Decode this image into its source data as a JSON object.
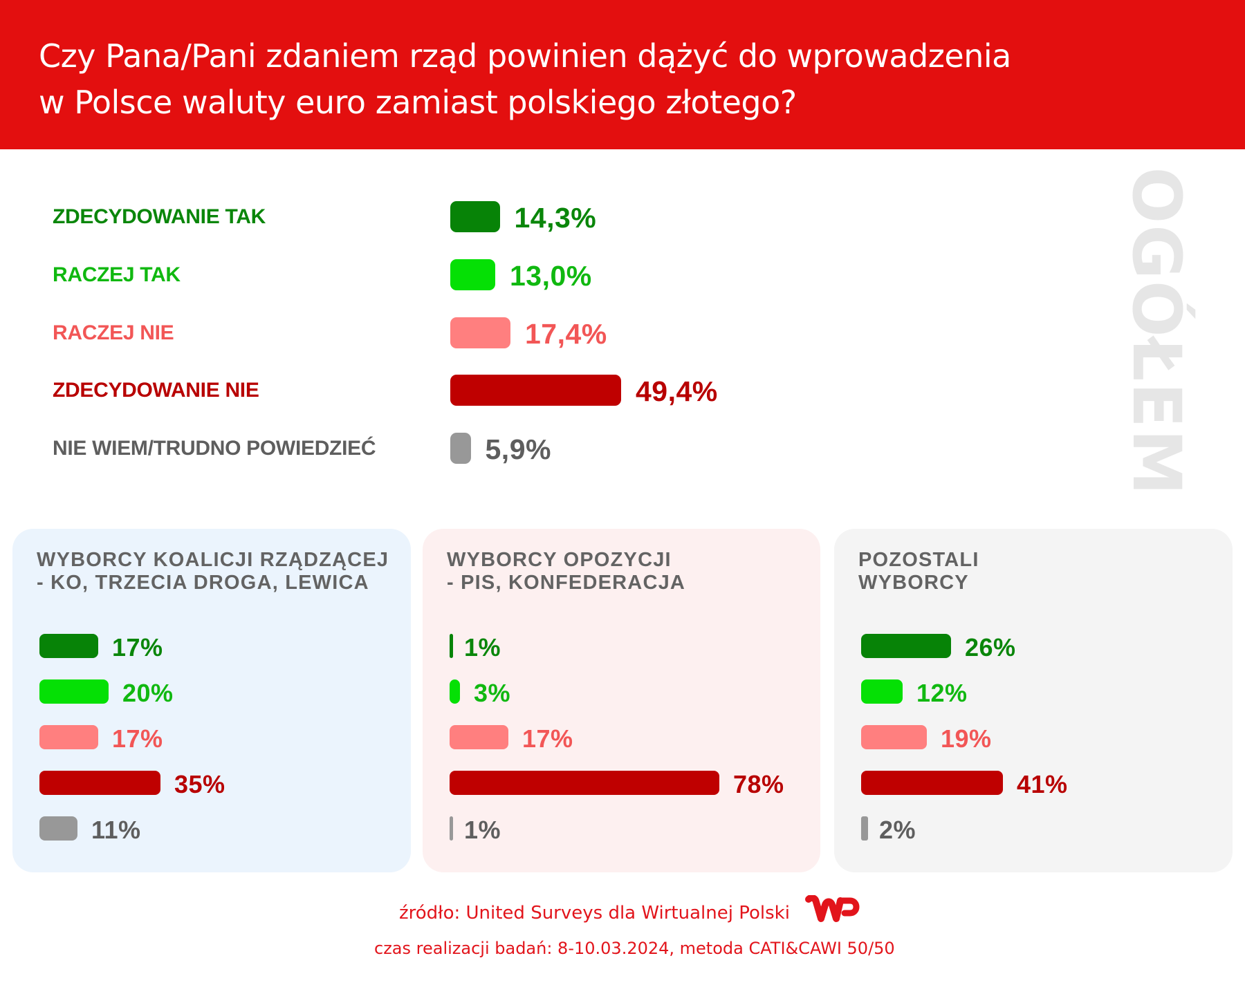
{
  "header": {
    "title_lines": [
      "Czy Pana/Pani zdaniem rząd powinien dążyć do wprowadzenia",
      "w Polsce waluty euro zamiast polskiego złotego?"
    ],
    "background": "#e30f0f"
  },
  "colors": {
    "zdecydowanie_tak": {
      "bar": "#078307",
      "text": "#0a860a"
    },
    "raczej_tak": {
      "bar": "#05e005",
      "text": "#10b810"
    },
    "raczej_nie": {
      "bar": "#ff7f7f",
      "text": "#f25656"
    },
    "zdecydowanie_nie": {
      "bar": "#bf0000",
      "text": "#b80000"
    },
    "nie_wiem": {
      "bar": "#989898",
      "text": "#5e5e5e"
    }
  },
  "chart_data": [
    {
      "type": "bar",
      "orientation": "horizontal",
      "title": "OGÓŁEM",
      "categories": [
        "ZDECYDOWANIE TAK",
        "RACZEJ TAK",
        "RACZEJ NIE",
        "ZDECYDOWANIE NIE",
        "NIE WIEM/TRUDNO POWIEDZIEĆ"
      ],
      "values": [
        14.3,
        13.0,
        17.4,
        49.4,
        5.9
      ],
      "value_labels": [
        "14,3%",
        "13,0%",
        "17,4%",
        "49,4%",
        "5,9%"
      ],
      "unit": "%",
      "xlim": [
        0,
        100
      ]
    },
    {
      "type": "bar",
      "orientation": "horizontal",
      "title_lines": [
        "WYBORCY KOALICJI RZĄDZĄCEJ",
        "- KO, TRZECIA DROGA, LEWICA"
      ],
      "categories": [
        "ZDECYDOWANIE TAK",
        "RACZEJ TAK",
        "RACZEJ NIE",
        "ZDECYDOWANIE NIE",
        "NIE WIEM/TRUDNO POWIEDZIEĆ"
      ],
      "values": [
        17,
        20,
        17,
        35,
        11
      ],
      "value_labels": [
        "17%",
        "20%",
        "17%",
        "35%",
        "11%"
      ],
      "unit": "%",
      "background": "#ebf4fd"
    },
    {
      "type": "bar",
      "orientation": "horizontal",
      "title_lines": [
        "WYBORCY OPOZYCJI",
        "- PIS, KONFEDERACJA"
      ],
      "categories": [
        "ZDECYDOWANIE TAK",
        "RACZEJ TAK",
        "RACZEJ NIE",
        "ZDECYDOWANIE NIE",
        "NIE WIEM/TRUDNO POWIEDZIEĆ"
      ],
      "values": [
        1,
        3,
        17,
        78,
        1
      ],
      "value_labels": [
        "1%",
        "3%",
        "17%",
        "78%",
        "1%"
      ],
      "unit": "%",
      "background": "#fdf0f0"
    },
    {
      "type": "bar",
      "orientation": "horizontal",
      "title_lines": [
        "POZOSTALI",
        "WYBORCY"
      ],
      "categories": [
        "ZDECYDOWANIE TAK",
        "RACZEJ TAK",
        "RACZEJ NIE",
        "ZDECYDOWANIE NIE",
        "NIE WIEM/TRUDNO POWIEDZIEĆ"
      ],
      "values": [
        26,
        12,
        19,
        41,
        2
      ],
      "value_labels": [
        "26%",
        "12%",
        "19%",
        "41%",
        "2%"
      ],
      "unit": "%",
      "background": "#f4f4f4"
    }
  ],
  "footer": {
    "source": "źródło: United Surveys dla Wirtualnej Polski",
    "method": "czas realizacji badań: 8-10.03.2024, metoda CATI&CAWI 50/50",
    "logo": "WP",
    "logo_color": "#e2141b"
  }
}
